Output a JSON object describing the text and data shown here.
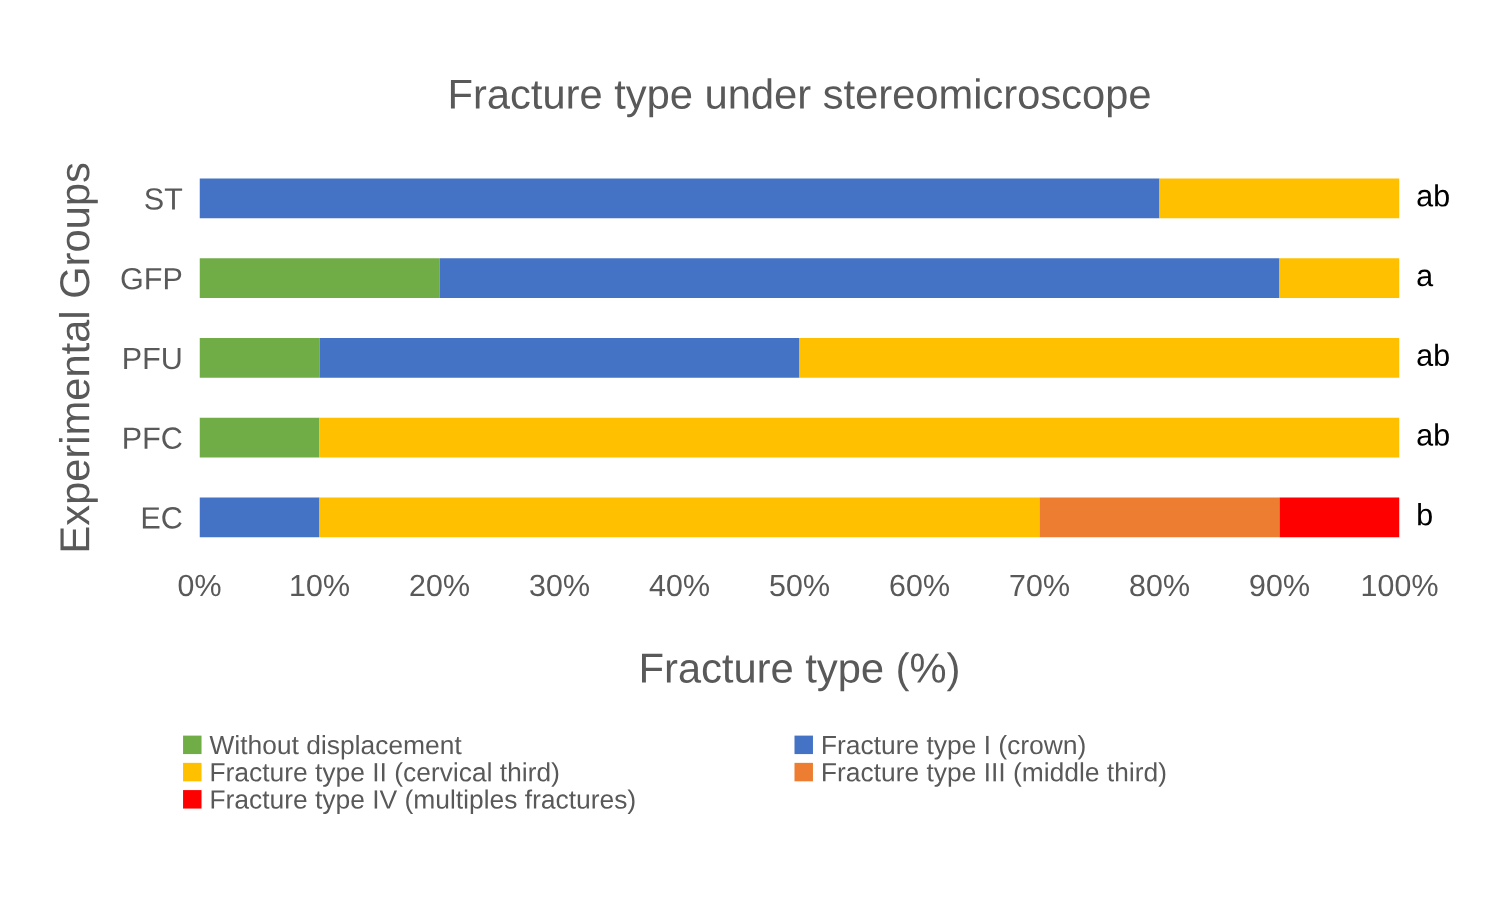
{
  "chart_data": {
    "type": "bar",
    "orientation": "horizontal",
    "stacked": true,
    "title": "Fracture type under stereomicroscope",
    "xlabel": "Fracture type (%)",
    "ylabel": "Experimental Groups",
    "categories": [
      "ST",
      "GFP",
      "PFU",
      "PFC",
      "EC"
    ],
    "series": [
      {
        "name": "Without displacement",
        "color": "#70ad47",
        "values": [
          0,
          20,
          10,
          10,
          0
        ]
      },
      {
        "name": "Fracture type I (crown)",
        "color": "#4472c4",
        "values": [
          80,
          70,
          40,
          0,
          10
        ]
      },
      {
        "name": "Fracture type II (cervical third)",
        "color": "#ffc000",
        "values": [
          20,
          10,
          50,
          90,
          60
        ]
      },
      {
        "name": "Fracture type III (middle third)",
        "color": "#ed7d31",
        "values": [
          0,
          0,
          0,
          0,
          20
        ]
      },
      {
        "name": "Fracture type IV (multiples fractures)",
        "color": "#ff0000",
        "values": [
          0,
          0,
          0,
          0,
          10
        ]
      }
    ],
    "xlim": [
      0,
      100
    ],
    "xticks": [
      {
        "value": 0,
        "label": "0%"
      },
      {
        "value": 10,
        "label": "10%"
      },
      {
        "value": 20,
        "label": "20%"
      },
      {
        "value": 30,
        "label": "30%"
      },
      {
        "value": 40,
        "label": "40%"
      },
      {
        "value": 50,
        "label": "50%"
      },
      {
        "value": 60,
        "label": "60%"
      },
      {
        "value": 70,
        "label": "70%"
      },
      {
        "value": 80,
        "label": "80%"
      },
      {
        "value": 90,
        "label": "90%"
      },
      {
        "value": 100,
        "label": "100%"
      }
    ],
    "annotations": [
      "ab",
      "a",
      "ab",
      "ab",
      "b"
    ],
    "legend": "bottom",
    "grid": false
  }
}
